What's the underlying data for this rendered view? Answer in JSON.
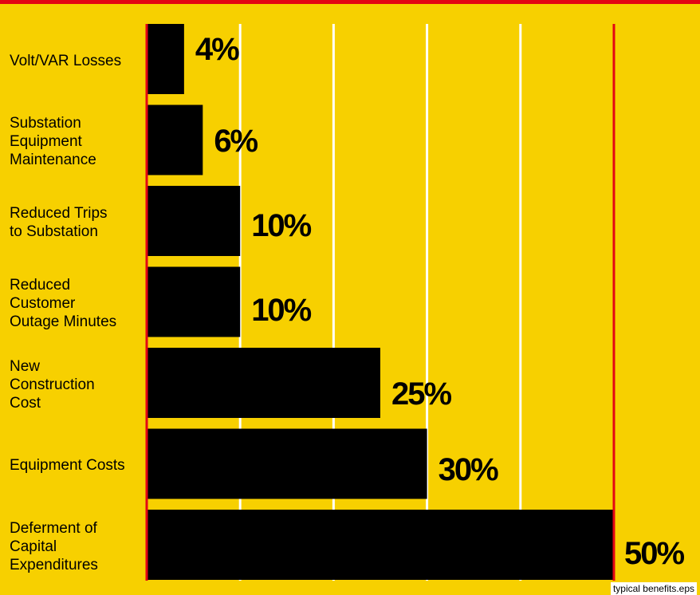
{
  "caption": "typical benefits.eps",
  "colors": {
    "background": "#f7d000",
    "bar": "#000000",
    "rule": "#e30613",
    "grid": "#ffffff"
  },
  "chart_data": {
    "type": "bar",
    "orientation": "horizontal",
    "categories": [
      "Volt/VAR Losses",
      "Substation\nEquipment\nMaintenance",
      "Reduced Trips\nto Substation",
      "Reduced\nCustomer\nOutage Minutes",
      "New\nConstruction\nCost",
      "Equipment Costs",
      "Deferment of\nCapital\nExpenditures"
    ],
    "values": [
      4,
      6,
      10,
      10,
      25,
      30,
      50
    ],
    "value_labels": [
      "4%",
      "6%",
      "10%",
      "10%",
      "25%",
      "30%",
      "50%"
    ],
    "xlim": [
      0,
      50
    ],
    "gridlines": [
      10,
      20,
      30,
      40
    ],
    "grid": true,
    "title": "",
    "xlabel": "",
    "ylabel": ""
  }
}
